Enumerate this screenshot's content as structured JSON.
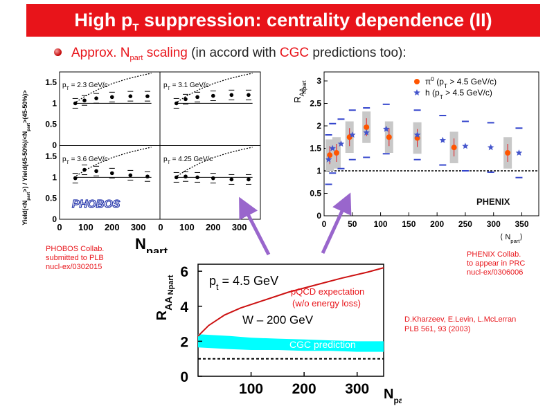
{
  "slide": {
    "title_main": "High p",
    "title_sub": "T",
    "title_rest": " suppression: centrality dependence (II)",
    "bullet": {
      "a": "Approx. N",
      "a_sub": "part",
      "b": " scaling",
      "c": " (in accord with ",
      "d": "CGC",
      "e": " predictions too):"
    },
    "phobos_caption": [
      "PHOBOS Collab.",
      "submitted to PLB",
      "nucl-ex/0302015"
    ],
    "phenix_caption": [
      "PHENIX Collab.",
      "to appear in PRC",
      "nucl-ex/0306006"
    ],
    "kharzeev_caption": [
      "D.Kharzeev, E.Levin, L.McLerran",
      "PLB 561, 93 (2003)"
    ],
    "colors": {
      "title_bg": "#e8141a",
      "accent": "#e8141a",
      "arrow": "#9966cc",
      "cgc_band": "#00ffff",
      "pi0": "#ff5500",
      "hadron": "#4455cc"
    }
  },
  "chart_data": [
    {
      "id": "phobos",
      "type": "scatter",
      "ylabel": "Yield(<N",
      "ylabel_sub1": "part",
      "ylabel_mid": ">) / Yield(45-50%)/<N",
      "ylabel_sub2": "part",
      "ylabel_end": ">(45-50%)>",
      "xlabel": "N",
      "xlabel_sub": "part",
      "logo": "PHOBOS",
      "ylim": [
        0,
        1.75
      ],
      "xlim": [
        0,
        380
      ],
      "y_ticks": [
        "0",
        "0.5",
        "1",
        "1.5"
      ],
      "y_tick_values": [
        0,
        0.5,
        1,
        1.5
      ],
      "x_ticks": [
        "0",
        "100",
        "200",
        "300"
      ],
      "x_tick_values": [
        0,
        100,
        200,
        300
      ],
      "panels": [
        {
          "label_a": "p",
          "label_sub": "T",
          "label_b": " = 2.3 GeV/c",
          "x": [
            60,
            95,
            140,
            200,
            270,
            335
          ],
          "y": [
            1.0,
            1.07,
            1.12,
            1.15,
            1.17,
            1.17
          ],
          "curve_x": [
            55,
            100,
            150,
            200,
            250,
            300,
            350
          ],
          "curve_y": [
            1.0,
            1.18,
            1.34,
            1.47,
            1.57,
            1.65,
            1.72
          ]
        },
        {
          "label_a": "p",
          "label_sub": "T",
          "label_b": " = 3.1 GeV/c",
          "x": [
            60,
            95,
            140,
            200,
            270,
            335
          ],
          "y": [
            1.0,
            1.1,
            1.15,
            1.18,
            1.2,
            1.2
          ],
          "curve_x": [
            55,
            100,
            150,
            200,
            250,
            300,
            350
          ],
          "curve_y": [
            1.0,
            1.18,
            1.34,
            1.47,
            1.57,
            1.65,
            1.72
          ]
        },
        {
          "label_a": "p",
          "label_sub": "T",
          "label_b": " = 3.6 GeV/c",
          "x": [
            60,
            95,
            140,
            200,
            270,
            335
          ],
          "y": [
            0.98,
            1.18,
            1.15,
            1.1,
            1.05,
            1.02
          ],
          "curve_x": [
            55,
            100,
            150,
            200,
            250,
            300,
            350
          ],
          "curve_y": [
            1.0,
            1.18,
            1.34,
            1.47,
            1.57,
            1.65,
            1.72
          ]
        },
        {
          "label_a": "p",
          "label_sub": "T",
          "label_b": " = 4.25 GeV/c",
          "x": [
            60,
            95,
            140,
            200,
            270,
            335
          ],
          "y": [
            1.0,
            1.02,
            1.0,
            0.98,
            0.95,
            0.95
          ],
          "curve_x": [
            55,
            100,
            150,
            200,
            250,
            300,
            350
          ],
          "curve_y": [
            1.0,
            1.18,
            1.34,
            1.47,
            1.57,
            1.65,
            1.72
          ]
        }
      ]
    },
    {
      "id": "phenix",
      "type": "scatter",
      "ylabel": "R",
      "ylabel_sub": "AA",
      "ylabel_sup": "Npart",
      "xlabel_a": "⟨ N",
      "xlabel_sub": "part",
      "xlabel_b": "⟩",
      "logo": "PHENIX",
      "xlim": [
        0,
        380
      ],
      "ylim": [
        0,
        3.2
      ],
      "x_ticks": [
        "0",
        "50",
        "100",
        "150",
        "200",
        "250",
        "300",
        "350"
      ],
      "x_tick_values": [
        0,
        50,
        100,
        150,
        200,
        250,
        300,
        350
      ],
      "y_ticks": [
        "0",
        "0.5",
        "1",
        "1.5",
        "2",
        "2.5",
        "3"
      ],
      "y_tick_values": [
        0,
        0.5,
        1,
        1.5,
        2,
        2.5,
        3
      ],
      "series": [
        {
          "name_a": "π",
          "name_sup": "0",
          "name_b": " (p",
          "name_sub": "T",
          "name_c": " > 4.5 GeV/c)",
          "marker": "circle",
          "x": [
            10,
            22,
            45,
            75,
            115,
            165,
            230,
            325
          ],
          "y": [
            1.35,
            1.4,
            1.75,
            1.97,
            1.75,
            1.73,
            1.52,
            1.4
          ]
        },
        {
          "name_a": "h",
          "name_sup": "",
          "name_b": "  (p",
          "name_sub": "T",
          "name_c": " > 4.5 GeV/c)",
          "marker": "star",
          "x": [
            8,
            15,
            30,
            50,
            75,
            110,
            165,
            210,
            250,
            295,
            345
          ],
          "y": [
            1.25,
            1.5,
            1.6,
            1.8,
            1.85,
            1.93,
            1.8,
            1.68,
            1.55,
            1.52,
            1.4
          ]
        }
      ],
      "reference_line": 1.0
    },
    {
      "id": "kharzeev",
      "type": "line",
      "ylabel": "R",
      "ylabel_sub": "AA",
      "ylabel_sup": "Npart",
      "xlabel": "N",
      "xlabel_sub": "part",
      "xlim": [
        0,
        350
      ],
      "ylim": [
        0,
        6.4
      ],
      "x_ticks": [
        "100",
        "200",
        "300"
      ],
      "x_tick_values": [
        100,
        200,
        300
      ],
      "y_ticks": [
        "0",
        "2",
        "4",
        "6"
      ],
      "y_tick_values": [
        0,
        2,
        4,
        6
      ],
      "annotation_pt_a": "p",
      "annotation_pt_sub": "t",
      "annotation_pt_b": " = 4.5 GeV",
      "annotation_w": "W – 200 GeV",
      "series": [
        {
          "name": "pQCD expectation",
          "name2": "(w/o energy loss)",
          "x": [
            0,
            20,
            50,
            80,
            120,
            170,
            220,
            270,
            320,
            350
          ],
          "y": [
            2.3,
            2.9,
            3.5,
            3.9,
            4.3,
            4.8,
            5.2,
            5.6,
            5.95,
            6.2
          ]
        },
        {
          "name": "CGC prediction",
          "x": [
            0,
            30,
            60,
            100,
            150,
            200,
            250,
            300,
            350
          ],
          "y_low": [
            1.65,
            1.6,
            1.55,
            1.5,
            1.5,
            1.45,
            1.45,
            1.4,
            1.4
          ],
          "y_high": [
            2.4,
            2.35,
            2.3,
            2.2,
            2.15,
            2.1,
            2.05,
            2.0,
            2.0
          ]
        },
        {
          "name": "reference",
          "y": 1.0
        }
      ]
    }
  ]
}
